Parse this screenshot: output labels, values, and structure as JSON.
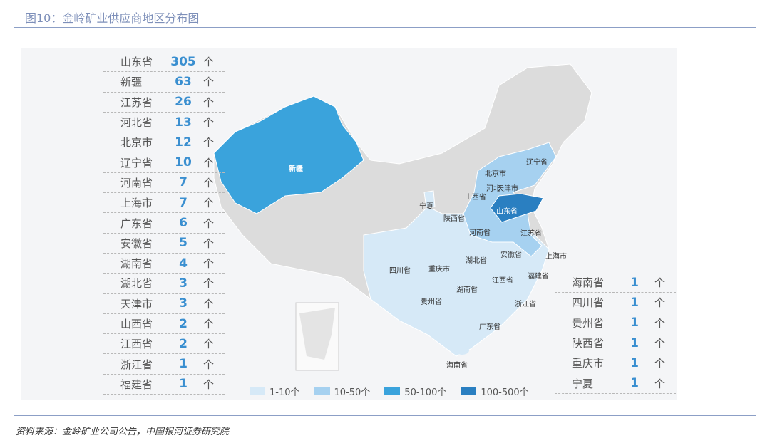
{
  "title": "图10：金岭矿业供应商地区分布图",
  "source": "资料来源：金岭矿业公司公告，中国银河证券研究院",
  "unit": "个",
  "colors": {
    "1-10": "#d6e9f7",
    "10-50": "#a6d1f0",
    "50-100": "#3aa3dc",
    "100-500": "#2a7fc1",
    "number": "#3a8fd0"
  },
  "left_list": [
    {
      "name": "山东省",
      "count": "305"
    },
    {
      "name": "新疆",
      "count": "63"
    },
    {
      "name": "江苏省",
      "count": "26"
    },
    {
      "name": "河北省",
      "count": "13"
    },
    {
      "name": "北京市",
      "count": "12"
    },
    {
      "name": "辽宁省",
      "count": "10"
    },
    {
      "name": "河南省",
      "count": "7"
    },
    {
      "name": "上海市",
      "count": "7"
    },
    {
      "name": "广东省",
      "count": "6"
    },
    {
      "name": "安徽省",
      "count": "5"
    },
    {
      "name": "湖南省",
      "count": "4"
    },
    {
      "name": "湖北省",
      "count": "3"
    },
    {
      "name": "天津市",
      "count": "3"
    },
    {
      "name": "山西省",
      "count": "2"
    },
    {
      "name": "江西省",
      "count": "2"
    },
    {
      "name": "浙江省",
      "count": "1"
    },
    {
      "name": "福建省",
      "count": "1"
    }
  ],
  "right_list": [
    {
      "name": "海南省",
      "count": "1"
    },
    {
      "name": "四川省",
      "count": "1"
    },
    {
      "name": "贵州省",
      "count": "1"
    },
    {
      "name": "陕西省",
      "count": "1"
    },
    {
      "name": "重庆市",
      "count": "1"
    },
    {
      "name": "宁夏",
      "count": "1"
    }
  ],
  "legend": [
    "1-10个",
    "10-50个",
    "50-100个",
    "100-500个"
  ],
  "map_labels": {
    "xinjiang": "新疆",
    "beijing": "北京市",
    "liaoning": "辽宁省",
    "hebei": "河北",
    "tianjin": "天津市",
    "shanxi": "山西省",
    "ningxia": "宁夏",
    "shaanxi": "陕西省",
    "shandong": "山东省",
    "henan": "河南省",
    "jiangsu": "江苏省",
    "anhui": "安徽省",
    "shanghai": "上海市",
    "hubei": "湖北省",
    "sichuan": "四川省",
    "chongqing": "重庆市",
    "fujian": "福建省",
    "jiangxi": "江西省",
    "hunan": "湖南省",
    "zhejiang": "浙江省",
    "guizhou": "贵州省",
    "guangdong": "广东省",
    "hainan": "海南省"
  }
}
